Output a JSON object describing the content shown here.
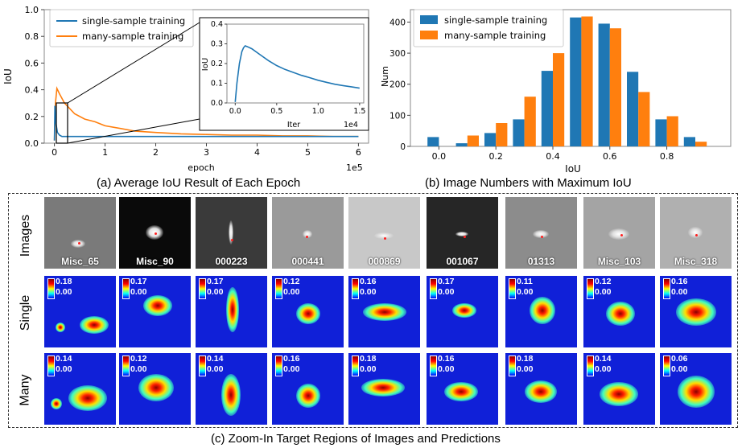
{
  "chart_data": [
    {
      "type": "line",
      "title": "",
      "xlabel": "epoch",
      "ylabel": "IoU",
      "x_scale_label": "1e5",
      "xlim": [
        -0.2,
        6.2
      ],
      "ylim": [
        0,
        1.0
      ],
      "x_ticks": [
        "0",
        "1",
        "2",
        "3",
        "4",
        "5",
        "6"
      ],
      "y_ticks": [
        "0.0",
        "0.2",
        "0.4",
        "0.6",
        "0.8",
        "1.0"
      ],
      "legend_position": "top-left",
      "series": [
        {
          "name": "single-sample training",
          "color": "#1f77b4",
          "x": [
            0,
            0.01,
            0.03,
            0.06,
            0.1,
            0.15,
            0.3,
            0.6,
            1.0,
            2.0,
            3.0,
            4.0,
            5.0,
            6.0
          ],
          "y": [
            0.02,
            0.28,
            0.15,
            0.08,
            0.06,
            0.05,
            0.05,
            0.05,
            0.05,
            0.05,
            0.05,
            0.05,
            0.05,
            0.05
          ]
        },
        {
          "name": "many-sample training",
          "color": "#ff7f0e",
          "x": [
            0,
            0.02,
            0.05,
            0.1,
            0.2,
            0.4,
            0.6,
            0.8,
            1.0,
            1.3,
            1.6,
            2.0,
            2.5,
            3.0,
            3.5,
            4.0,
            4.5,
            5.0,
            5.5,
            6.0
          ],
          "y": [
            0.02,
            0.3,
            0.41,
            0.37,
            0.3,
            0.22,
            0.18,
            0.16,
            0.13,
            0.11,
            0.09,
            0.08,
            0.07,
            0.065,
            0.06,
            0.06,
            0.055,
            0.055,
            0.05,
            0.05
          ]
        }
      ],
      "inset": {
        "xlabel": "Iter",
        "ylabel": "IoU",
        "x_scale_label": "1e4",
        "xlim": [
          -0.1,
          1.55
        ],
        "ylim": [
          0,
          0.4
        ],
        "x_ticks": [
          "0.0",
          "0.5",
          "1.0",
          "1.5"
        ],
        "y_ticks": [
          "0.0",
          "0.1",
          "0.2",
          "0.3",
          "0.4"
        ],
        "series": [
          {
            "name": "single-sample training",
            "color": "#1f77b4",
            "x": [
              0,
              0.02,
              0.05,
              0.08,
              0.1,
              0.12,
              0.15,
              0.2,
              0.3,
              0.4,
              0.5,
              0.6,
              0.7,
              0.8,
              0.9,
              1.0,
              1.1,
              1.2,
              1.3,
              1.4,
              1.5
            ],
            "y": [
              0.005,
              0.1,
              0.2,
              0.26,
              0.28,
              0.29,
              0.285,
              0.275,
              0.245,
              0.215,
              0.19,
              0.17,
              0.155,
              0.14,
              0.128,
              0.115,
              0.105,
              0.095,
              0.088,
              0.082,
              0.075
            ]
          }
        ]
      }
    },
    {
      "type": "bar",
      "title": "",
      "xlabel": "IoU",
      "ylabel": "Num",
      "xlim": [
        -0.1,
        1.03
      ],
      "ylim": [
        0,
        440
      ],
      "x_ticks": [
        "0.0",
        "0.2",
        "0.4",
        "0.6",
        "0.8"
      ],
      "y_ticks": [
        "0",
        "100",
        "200",
        "300",
        "400"
      ],
      "legend_position": "top-left",
      "categories": [
        "0.0",
        "0.1",
        "0.2",
        "0.3",
        "0.4",
        "0.5",
        "0.6",
        "0.7",
        "0.8",
        "0.9"
      ],
      "series": [
        {
          "name": "single-sample training",
          "color": "#1f77b4",
          "values": [
            30,
            10,
            43,
            87,
            243,
            415,
            395,
            240,
            87,
            30
          ]
        },
        {
          "name": "many-sample training",
          "color": "#ff7f0e",
          "values": [
            0,
            35,
            75,
            160,
            300,
            418,
            380,
            175,
            97,
            15
          ]
        }
      ]
    }
  ],
  "captions": {
    "a": "(a) Average IoU Result of Each Epoch",
    "b": "(b) Image Numbers with Maximum IoU",
    "c": "(c) Zoom-In Target Regions of Images and Predictions"
  },
  "row_labels": {
    "images": "Images",
    "single": "Single",
    "many": "Many"
  },
  "images": [
    {
      "name": "Misc_65"
    },
    {
      "name": "Misc_90"
    },
    {
      "name": "000223"
    },
    {
      "name": "000441"
    },
    {
      "name": "000869"
    },
    {
      "name": "001067"
    },
    {
      "name": "01313"
    },
    {
      "name": "Misc_103"
    },
    {
      "name": "Misc_318"
    }
  ],
  "single_heatmaps": [
    {
      "max": "0.18",
      "min": "0.00"
    },
    {
      "max": "0.17",
      "min": "0.00"
    },
    {
      "max": "0.17",
      "min": "0.00"
    },
    {
      "max": "0.12",
      "min": "0.00"
    },
    {
      "max": "0.16",
      "min": "0.00"
    },
    {
      "max": "0.17",
      "min": "0.00"
    },
    {
      "max": "0.11",
      "min": "0.00"
    },
    {
      "max": "0.12",
      "min": "0.00"
    },
    {
      "max": "0.16",
      "min": "0.00"
    }
  ],
  "many_heatmaps": [
    {
      "max": "0.14",
      "min": "0.00"
    },
    {
      "max": "0.12",
      "min": "0.00"
    },
    {
      "max": "0.14",
      "min": "0.00"
    },
    {
      "max": "0.16",
      "min": "0.00"
    },
    {
      "max": "0.18",
      "min": "0.00"
    },
    {
      "max": "0.16",
      "min": "0.00"
    },
    {
      "max": "0.18",
      "min": "0.00"
    },
    {
      "max": "0.14",
      "min": "0.00"
    },
    {
      "max": "0.06",
      "min": "0.00"
    }
  ]
}
